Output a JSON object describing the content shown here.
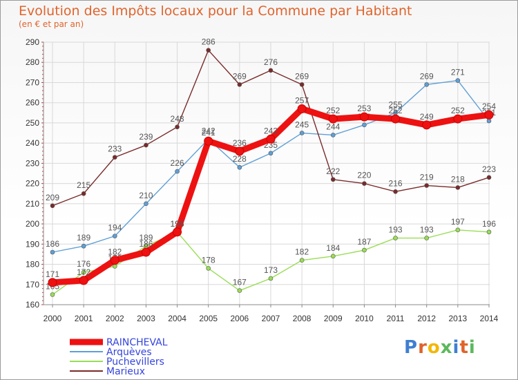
{
  "header": {
    "title": "Evolution des Impôts locaux pour la Commune par Habitant",
    "subtitle": "(en € et par an)"
  },
  "logo": {
    "text": "Proxiti",
    "colors": [
      "#3f7fd1",
      "#e0632b",
      "#f2b705",
      "#5cb85c",
      "#3f7fd1",
      "#e0632b",
      "#5cb85c"
    ]
  },
  "chart_data": {
    "type": "line",
    "x": [
      2000,
      2001,
      2002,
      2003,
      2004,
      2005,
      2006,
      2007,
      2008,
      2009,
      2010,
      2011,
      2012,
      2013,
      2014
    ],
    "ylim": [
      160,
      290
    ],
    "yticks": [
      160,
      170,
      180,
      190,
      200,
      210,
      220,
      230,
      240,
      250,
      260,
      270,
      280,
      290
    ],
    "grid": true,
    "legend_position": "bottom-left",
    "series": [
      {
        "name": "RAINCHEVAL",
        "color": "#ee1111",
        "values": [
          171,
          172,
          182,
          186,
          196,
          241,
          236,
          242,
          257,
          252,
          253,
          252,
          249,
          252,
          254
        ]
      },
      {
        "name": "Arquèves",
        "color": "#5f9fd6",
        "values": [
          186,
          189,
          194,
          210,
          226,
          242,
          228,
          235,
          245,
          244,
          249,
          255,
          269,
          271,
          251
        ]
      },
      {
        "name": "Puchevillers",
        "color": "#99dd55",
        "values": [
          165,
          176,
          179,
          189,
          196,
          178,
          167,
          173,
          182,
          184,
          187,
          193,
          193,
          197,
          196
        ]
      },
      {
        "name": "Marieux",
        "color": "#7a2a2a",
        "values": [
          209,
          215,
          233,
          239,
          248,
          286,
          269,
          276,
          269,
          222,
          220,
          216,
          219,
          218,
          223
        ]
      }
    ]
  }
}
